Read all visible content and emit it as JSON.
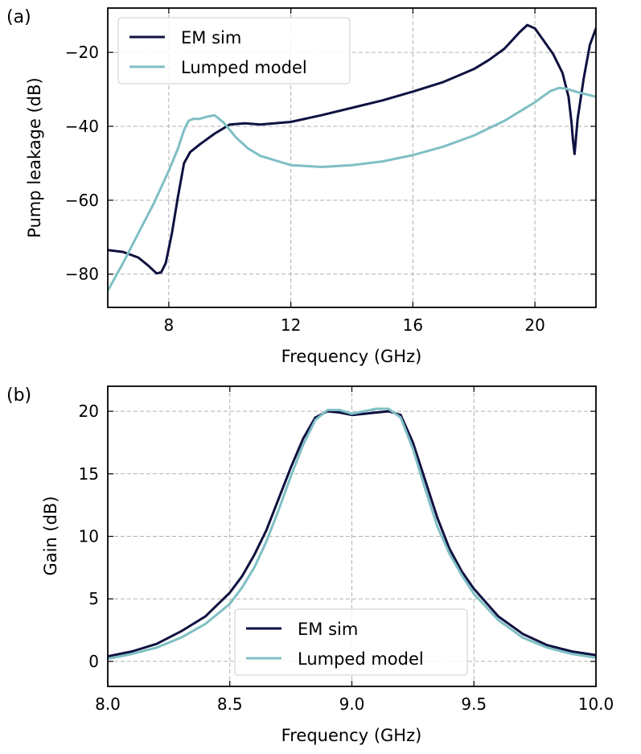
{
  "chart_data": [
    {
      "type": "line",
      "panel_label": "(a)",
      "xlabel": "Frequency (GHz)",
      "ylabel": "Pump leakage (dB)",
      "xlim": [
        6,
        22
      ],
      "ylim": [
        -89,
        -8
      ],
      "xticks": [
        8,
        12,
        16,
        20
      ],
      "xtick_labels": [
        "8",
        "12",
        "16",
        "20"
      ],
      "yticks": [
        -80,
        -60,
        -40,
        -20
      ],
      "ytick_labels": [
        "−80",
        "−60",
        "−40",
        "−20"
      ],
      "grid": true,
      "legend_position": "top-left",
      "series": [
        {
          "name": "EM sim",
          "color": "#0f1140",
          "x": [
            6,
            6.5,
            7,
            7.3,
            7.6,
            7.75,
            7.9,
            8.1,
            8.3,
            8.5,
            8.7,
            9,
            9.5,
            10,
            10.5,
            11,
            12,
            13,
            14,
            15,
            16,
            17,
            18,
            18.5,
            19,
            19.5,
            19.75,
            20,
            20.3,
            20.6,
            20.9,
            21.1,
            21.2,
            21.25,
            21.3,
            21.4,
            21.6,
            21.8,
            22
          ],
          "y": [
            -73.5,
            -74,
            -75.5,
            -77.5,
            -79.8,
            -79.5,
            -77,
            -69,
            -59,
            -50,
            -47,
            -45,
            -42,
            -39.5,
            -39.2,
            -39.5,
            -38.8,
            -37,
            -35,
            -33,
            -30.6,
            -28,
            -24.5,
            -22,
            -19,
            -14.5,
            -12.6,
            -13.5,
            -17,
            -20.5,
            -25.5,
            -32,
            -39,
            -44,
            -47.5,
            -38,
            -27,
            -18,
            -13.5
          ]
        },
        {
          "name": "Lumped model",
          "color": "#7fbfc4",
          "x": [
            6,
            6.5,
            7,
            7.5,
            8,
            8.3,
            8.5,
            8.65,
            8.8,
            9,
            9.2,
            9.5,
            9.8,
            10.2,
            10.6,
            11,
            12,
            13,
            14,
            15,
            16,
            17,
            18,
            19,
            20,
            20.5,
            20.8,
            21,
            21.5,
            22
          ],
          "y": [
            -84.5,
            -77,
            -69,
            -61,
            -52,
            -46,
            -41,
            -38.5,
            -38,
            -38,
            -37.5,
            -37,
            -39,
            -43,
            -46,
            -48,
            -50.5,
            -51,
            -50.5,
            -49.5,
            -47.8,
            -45.5,
            -42.5,
            -38.5,
            -33.5,
            -30.5,
            -29.6,
            -29.8,
            -31,
            -32
          ]
        }
      ]
    },
    {
      "type": "line",
      "panel_label": "(b)",
      "xlabel": "Frequency (GHz)",
      "ylabel": "Gain (dB)",
      "xlim": [
        8.0,
        10.0
      ],
      "ylim": [
        -2,
        22
      ],
      "xticks": [
        8.0,
        8.5,
        9.0,
        9.5,
        10.0
      ],
      "xtick_labels": [
        "8.0",
        "8.5",
        "9.0",
        "9.5",
        "10.0"
      ],
      "yticks": [
        0,
        5,
        10,
        15,
        20
      ],
      "ytick_labels": [
        "0",
        "5",
        "10",
        "15",
        "20"
      ],
      "grid": true,
      "legend_position": "bottom-center",
      "series": [
        {
          "name": "EM sim",
          "color": "#0f1140",
          "x": [
            8.0,
            8.1,
            8.2,
            8.3,
            8.4,
            8.5,
            8.55,
            8.6,
            8.65,
            8.7,
            8.75,
            8.8,
            8.85,
            8.9,
            8.95,
            9.0,
            9.05,
            9.1,
            9.15,
            9.2,
            9.25,
            9.3,
            9.35,
            9.4,
            9.45,
            9.5,
            9.6,
            9.7,
            9.8,
            9.9,
            10.0
          ],
          "y": [
            0.4,
            0.8,
            1.4,
            2.4,
            3.6,
            5.5,
            6.8,
            8.5,
            10.5,
            13.0,
            15.5,
            17.8,
            19.5,
            20.0,
            19.9,
            19.7,
            19.8,
            19.9,
            20.0,
            19.7,
            17.5,
            14.5,
            11.5,
            9.0,
            7.2,
            5.8,
            3.6,
            2.2,
            1.3,
            0.8,
            0.5
          ]
        },
        {
          "name": "Lumped model",
          "color": "#7fbfc4",
          "x": [
            8.0,
            8.1,
            8.2,
            8.3,
            8.4,
            8.5,
            8.55,
            8.6,
            8.65,
            8.7,
            8.75,
            8.8,
            8.85,
            8.9,
            8.95,
            9.0,
            9.05,
            9.1,
            9.15,
            9.2,
            9.25,
            9.3,
            9.35,
            9.4,
            9.45,
            9.5,
            9.6,
            9.7,
            9.8,
            9.9,
            10.0
          ],
          "y": [
            0.2,
            0.6,
            1.1,
            1.9,
            3.0,
            4.6,
            5.9,
            7.5,
            9.6,
            12.1,
            14.8,
            17.3,
            19.3,
            20.1,
            20.1,
            19.8,
            20.0,
            20.2,
            20.2,
            19.5,
            17.0,
            13.8,
            10.8,
            8.6,
            6.9,
            5.4,
            3.3,
            1.9,
            1.1,
            0.6,
            0.3
          ]
        }
      ]
    }
  ]
}
